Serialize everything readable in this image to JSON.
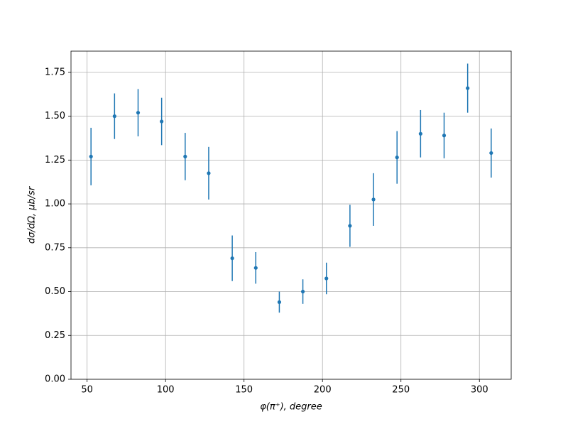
{
  "chart_data": {
    "type": "scatter",
    "xlabel": "φ(π⁺), degree",
    "ylabel": "dσ/dΩ, μb/sr",
    "x": [
      52.5,
      67.5,
      82.5,
      97.5,
      112.5,
      127.5,
      142.5,
      157.5,
      172.5,
      187.5,
      202.5,
      217.5,
      232.5,
      247.5,
      262.5,
      277.5,
      292.5,
      307.5
    ],
    "values": [
      1.27,
      1.5,
      1.52,
      1.47,
      1.27,
      1.175,
      0.69,
      0.635,
      0.44,
      0.5,
      0.575,
      0.875,
      1.025,
      1.265,
      1.4,
      1.39,
      1.66,
      1.29
    ],
    "errors": [
      0.164,
      0.13,
      0.135,
      0.135,
      0.135,
      0.15,
      0.13,
      0.09,
      0.06,
      0.07,
      0.09,
      0.12,
      0.15,
      0.15,
      0.135,
      0.13,
      0.14,
      0.14
    ],
    "color": "#1f77b4",
    "xlim": [
      39.75,
      320.25
    ],
    "ylim": [
      0,
      1.871
    ],
    "xticks": [
      50,
      100,
      150,
      200,
      250,
      300
    ],
    "yticks": [
      {
        "value": 0,
        "label": "0.00"
      },
      {
        "value": 0.25,
        "label": "0.25"
      },
      {
        "value": 0.5,
        "label": "0.50"
      },
      {
        "value": 0.75,
        "label": "0.75"
      },
      {
        "value": 1,
        "label": "1.00"
      },
      {
        "value": 1.25,
        "label": "1.25"
      },
      {
        "value": 1.5,
        "label": "1.50"
      },
      {
        "value": 1.75,
        "label": "1.75"
      }
    ],
    "grid": true
  }
}
